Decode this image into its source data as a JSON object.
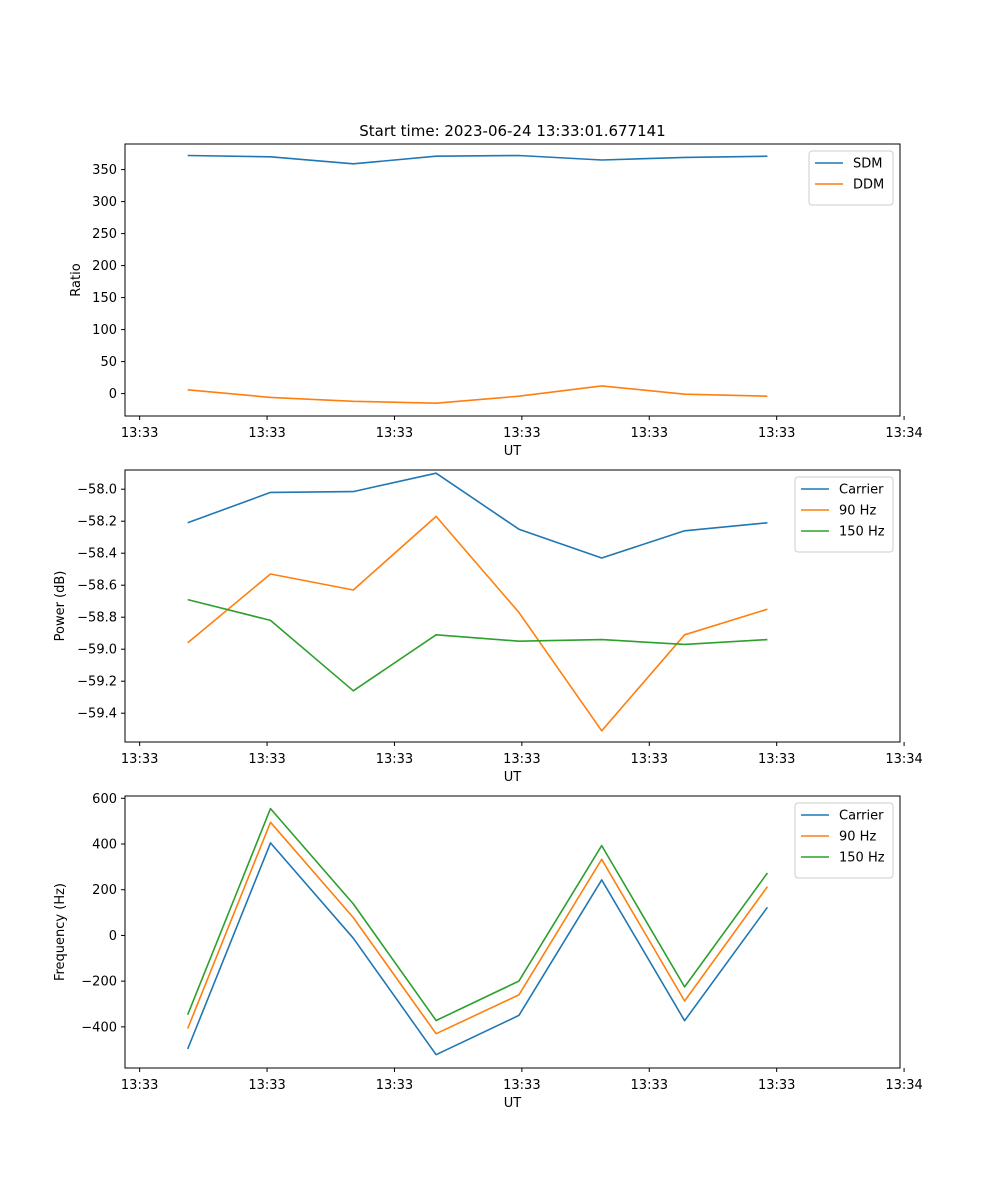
{
  "figure": {
    "title": "Start time: 2023-06-24 13:33:01.677141"
  },
  "chart_data": [
    {
      "type": "line",
      "title": "Start time: 2023-06-24 13:33:01.677141",
      "xlabel": "UT",
      "ylabel": "Ratio",
      "x": [
        "13:33:01.677",
        "13:33:02.327",
        "13:33:02.977",
        "13:33:03.627",
        "13:33:04.277",
        "13:33:04.927",
        "13:33:05.577",
        "13:33:06.227"
      ],
      "xlim": [
        "13:33:01.185",
        "13:33:07.268"
      ],
      "x_ticks": [
        {
          "t": 1.3,
          "label": "13:33"
        },
        {
          "t": 2.3,
          "label": "13:33"
        },
        {
          "t": 3.3,
          "label": "13:33"
        },
        {
          "t": 4.3,
          "label": "13:33"
        },
        {
          "t": 5.3,
          "label": "13:33"
        },
        {
          "t": 6.3,
          "label": "13:33"
        },
        {
          "t": 7.3,
          "label": "13:34"
        }
      ],
      "ylim": [
        -35,
        390
      ],
      "yticks": [
        0,
        50,
        100,
        150,
        200,
        250,
        300,
        350
      ],
      "legend": "top-right",
      "series": [
        {
          "name": "SDM",
          "color": "#1f77b4",
          "values": [
            372,
            370,
            359,
            371,
            372,
            365,
            369,
            371
          ]
        },
        {
          "name": "DDM",
          "color": "#ff7f0e",
          "values": [
            6,
            -6,
            -12,
            -15,
            -4,
            12,
            -1,
            -4
          ]
        }
      ]
    },
    {
      "type": "line",
      "xlabel": "UT",
      "ylabel": "Power (dB)",
      "x": [
        "13:33:01.677",
        "13:33:02.327",
        "13:33:02.977",
        "13:33:03.627",
        "13:33:04.277",
        "13:33:04.927",
        "13:33:05.577",
        "13:33:06.227"
      ],
      "xlim": [
        "13:33:01.185",
        "13:33:07.268"
      ],
      "x_ticks": [
        {
          "t": 1.3,
          "label": "13:33"
        },
        {
          "t": 2.3,
          "label": "13:33"
        },
        {
          "t": 3.3,
          "label": "13:33"
        },
        {
          "t": 4.3,
          "label": "13:33"
        },
        {
          "t": 5.3,
          "label": "13:33"
        },
        {
          "t": 6.3,
          "label": "13:33"
        },
        {
          "t": 7.3,
          "label": "13:34"
        }
      ],
      "ylim": [
        -59.58,
        -57.88
      ],
      "yticks": [
        -59.4,
        -59.2,
        -59.0,
        -58.8,
        -58.6,
        -58.4,
        -58.2,
        -58.0
      ],
      "ytick_labels": [
        "−59.4",
        "−59.2",
        "−59.0",
        "−58.8",
        "−58.6",
        "−58.4",
        "−58.2",
        "−58.0"
      ],
      "legend": "top-right",
      "series": [
        {
          "name": "Carrier",
          "color": "#1f77b4",
          "values": [
            -58.21,
            -58.02,
            -58.015,
            -57.9,
            -58.25,
            -58.43,
            -58.26,
            -58.21
          ]
        },
        {
          "name": "90 Hz",
          "color": "#ff7f0e",
          "values": [
            -58.96,
            -58.53,
            -58.63,
            -58.17,
            -58.77,
            -59.51,
            -58.91,
            -58.75
          ]
        },
        {
          "name": "150 Hz",
          "color": "#2ca02c",
          "values": [
            -58.69,
            -58.82,
            -59.26,
            -58.91,
            -58.95,
            -58.94,
            -58.97,
            -58.94
          ]
        }
      ]
    },
    {
      "type": "line",
      "xlabel": "UT",
      "ylabel": "Frequency (Hz)",
      "x": [
        "13:33:01.677",
        "13:33:02.327",
        "13:33:02.977",
        "13:33:03.627",
        "13:33:04.277",
        "13:33:04.927",
        "13:33:05.577",
        "13:33:06.227"
      ],
      "xlim": [
        "13:33:01.185",
        "13:33:07.268"
      ],
      "x_ticks": [
        {
          "t": 1.3,
          "label": "13:33"
        },
        {
          "t": 2.3,
          "label": "13:33"
        },
        {
          "t": 3.3,
          "label": "13:33"
        },
        {
          "t": 4.3,
          "label": "13:33"
        },
        {
          "t": 5.3,
          "label": "13:33"
        },
        {
          "t": 6.3,
          "label": "13:33"
        },
        {
          "t": 7.3,
          "label": "13:34"
        }
      ],
      "ylim": [
        -580,
        610
      ],
      "yticks": [
        -400,
        -200,
        0,
        200,
        400,
        600
      ],
      "ytick_labels": [
        "−400",
        "−200",
        "0",
        "200",
        "400",
        "600"
      ],
      "legend": "top-right",
      "series": [
        {
          "name": "Carrier",
          "color": "#1f77b4",
          "values": [
            -497,
            405,
            -12,
            -522,
            -350,
            243,
            -373,
            123
          ]
        },
        {
          "name": "90 Hz",
          "color": "#ff7f0e",
          "values": [
            -407,
            495,
            78,
            -430,
            -260,
            333,
            -287,
            213
          ]
        },
        {
          "name": "150 Hz",
          "color": "#2ca02c",
          "values": [
            -347,
            555,
            138,
            -372,
            -200,
            393,
            -225,
            273
          ]
        }
      ]
    }
  ]
}
